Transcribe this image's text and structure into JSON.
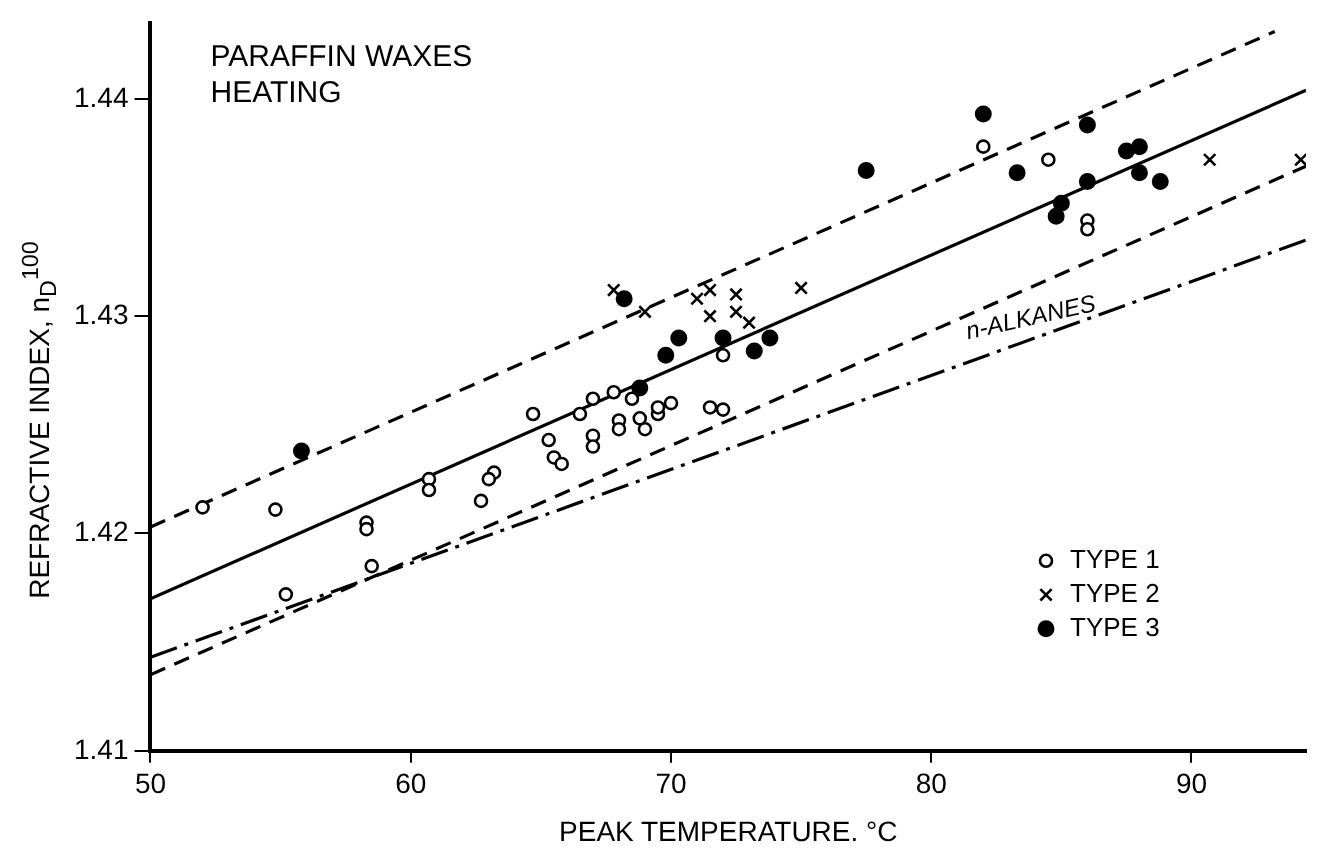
{
  "chart_data": {
    "type": "scatter",
    "xlabel": "PEAK TEMPERATURE. °C",
    "ylabel": "REFRACTIVE INDEX, n$_{D}$$^{100}$",
    "annotations": [
      "PARAFFIN WAXES",
      "HEATING",
      {
        "text": "n-ALKANES",
        "x": 84,
        "y": 1.429
      }
    ],
    "xlim": [
      50,
      94.4
    ],
    "xticks": [
      50,
      60,
      70,
      80,
      90
    ],
    "ylim": [
      1.41,
      1.4435
    ],
    "yticks": [
      1.41,
      1.42,
      1.43,
      1.44
    ],
    "grid": false,
    "legend": "bottom right",
    "series": [
      {
        "name": "TYPE 1",
        "color": "#000000",
        "marker": "circle",
        "x": [
          52,
          54.8,
          55.2,
          58.3,
          58.3,
          58.5,
          60.7,
          60.7,
          62.7,
          63.2,
          63,
          64.7,
          65.5,
          65.8,
          65.3,
          66.5,
          67,
          67,
          67,
          68,
          68,
          68.5,
          69,
          69.5,
          69.5,
          70,
          72,
          71.5,
          72,
          67.8,
          68.8,
          84.5,
          86,
          86,
          82
        ],
        "values": [
          1.4212,
          1.4211,
          1.4172,
          1.4205,
          1.4202,
          1.4185,
          1.4225,
          1.422,
          1.4215,
          1.4228,
          1.4225,
          1.4255,
          1.4235,
          1.4232,
          1.4243,
          1.4255,
          1.4262,
          1.4245,
          1.424,
          1.4252,
          1.4248,
          1.4262,
          1.4248,
          1.4255,
          1.4258,
          1.426,
          1.4282,
          1.4258,
          1.4257,
          1.4265,
          1.4253,
          1.4372,
          1.4344,
          1.434,
          1.4378
        ]
      },
      {
        "name": "TYPE 2",
        "color": "#000000",
        "marker": "cross",
        "x": [
          67.8,
          69,
          71,
          71.5,
          71.5,
          72.5,
          72.5,
          73,
          75,
          90.7,
          94.2
        ],
        "values": [
          1.4312,
          1.4302,
          1.4308,
          1.4312,
          1.43,
          1.431,
          1.4302,
          1.4297,
          1.4313,
          1.4372,
          1.4372
        ]
      },
      {
        "name": "TYPE 3",
        "color": "#000000",
        "marker": "circle",
        "x": [
          55.8,
          68.2,
          69.8,
          70.3,
          72,
          73.2,
          73.8,
          77.5,
          82,
          83.3,
          84.8,
          85,
          86,
          86,
          87.5,
          88,
          88,
          88.8,
          68.8
        ],
        "values": [
          1.4238,
          1.4308,
          1.4282,
          1.429,
          1.429,
          1.4284,
          1.429,
          1.4367,
          1.4393,
          1.4366,
          1.4346,
          1.4352,
          1.4362,
          1.4388,
          1.4376,
          1.4378,
          1.4366,
          1.4362,
          1.4267
        ]
      },
      {
        "type": "line",
        "color": "#000000",
        "line_style": "solid",
        "x": [
          50,
          94.4
        ],
        "values": [
          1.417,
          1.4404
        ]
      },
      {
        "type": "line",
        "color": "#000000",
        "line_style": "dashed",
        "x": [
          50,
          93.2
        ],
        "values": [
          1.4203,
          1.4431
        ]
      },
      {
        "type": "line",
        "color": "#000000",
        "line_style": "dashed",
        "x": [
          50,
          94.4
        ],
        "values": [
          1.4135,
          1.4369
        ]
      },
      {
        "type": "line",
        "color": "#000000",
        "line_style": "dashdot",
        "x": [
          50,
          94.4
        ],
        "values": [
          1.4143,
          1.4335
        ]
      }
    ]
  }
}
